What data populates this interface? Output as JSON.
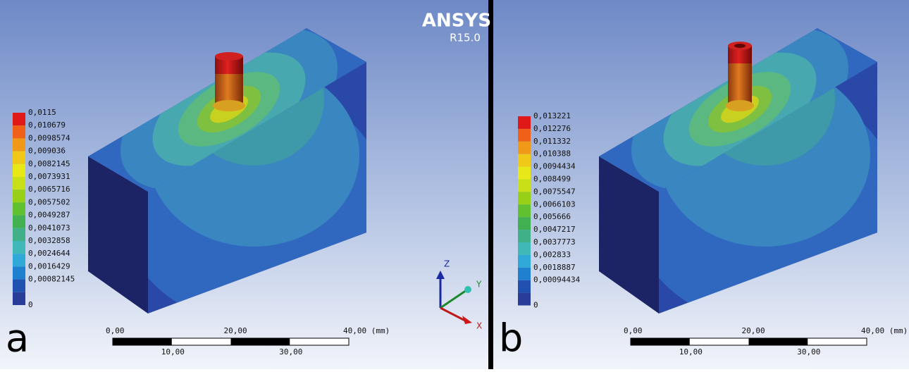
{
  "branding": {
    "name": "ANSYS",
    "version": "R15.0"
  },
  "panels": [
    {
      "letter": "a",
      "legend": [
        "0,0115",
        "0,010679",
        "0,0098574",
        "0,009036",
        "0,0082145",
        "0,0073931",
        "0,0065716",
        "0,0057502",
        "0,0049287",
        "0,0041073",
        "0,0032858",
        "0,0024644",
        "0,0016429",
        "0,00082145",
        "0"
      ],
      "scale_top": [
        "0,00",
        "20,00",
        "40,00 (mm)"
      ],
      "scale_bottom": [
        "10,00",
        "30,00"
      ],
      "axes": [
        "Z",
        "Y",
        "X"
      ]
    },
    {
      "letter": "b",
      "legend": [
        "0,013221",
        "0,012276",
        "0,011332",
        "0,010388",
        "0,0094434",
        "0,008499",
        "0,0075547",
        "0,0066103",
        "0,005666",
        "0,0047217",
        "0,0037773",
        "0,002833",
        "0,0018887",
        "0,00094434",
        "0"
      ],
      "scale_top": [
        "0,00",
        "20,00",
        "40,00 (mm)"
      ],
      "scale_bottom": [
        "10,00",
        "30,00"
      ]
    }
  ]
}
